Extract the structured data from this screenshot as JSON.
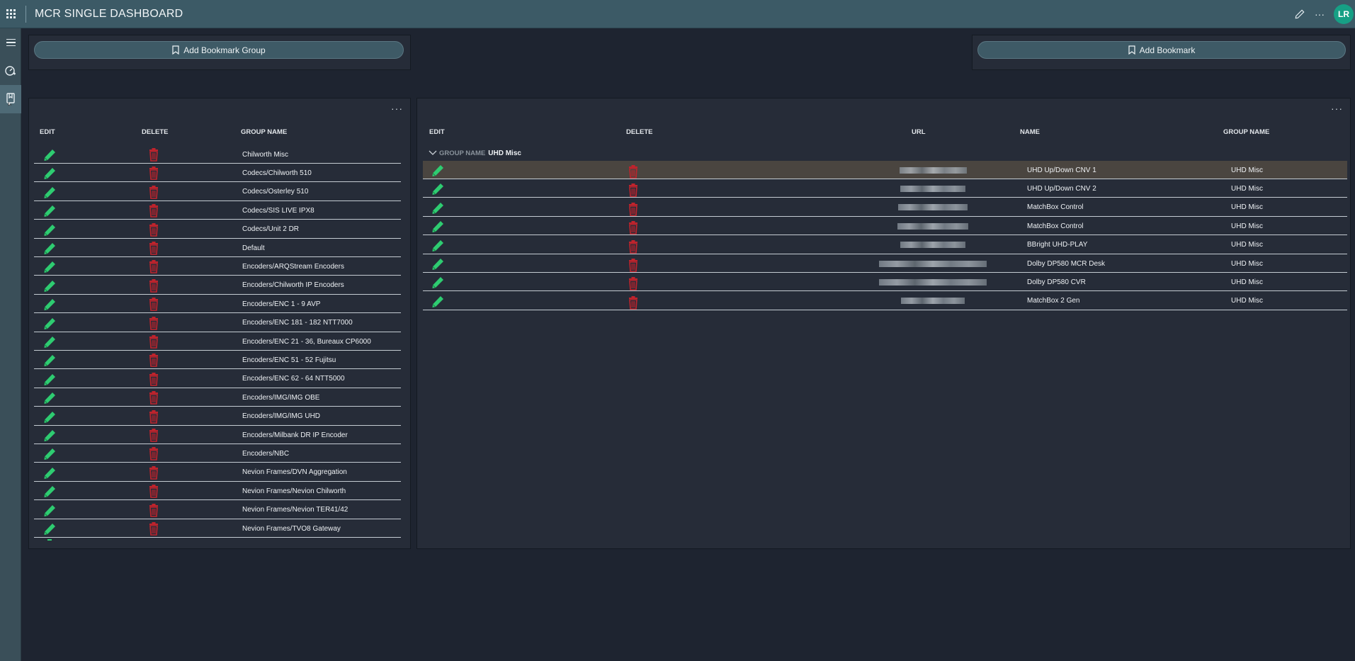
{
  "header": {
    "title": "MCR SINGLE DASHBOARD",
    "avatar_initials": "LR"
  },
  "buttons": {
    "add_group": "Add Bookmark Group",
    "add_bookmark": "Add Bookmark"
  },
  "groups_table": {
    "columns": [
      "EDIT",
      "DELETE",
      "GROUP NAME"
    ],
    "rows": [
      "Chilworth Misc",
      "Codecs/Chilworth 510",
      "Codecs/Osterley 510",
      "Codecs/SIS LIVE IPX8",
      "Codecs/Unit 2 DR",
      "Default",
      "Encoders/ARQStream Encoders",
      "Encoders/Chilworth IP Encoders",
      "Encoders/ENC 1 - 9 AVP",
      "Encoders/ENC 181 - 182 NTT7000",
      "Encoders/ENC 21 - 36, Bureaux CP6000",
      "Encoders/ENC 51 - 52 Fujitsu",
      "Encoders/ENC 62 - 64 NTT5000",
      "Encoders/IMG/IMG OBE",
      "Encoders/IMG/IMG UHD",
      "Encoders/Milbank DR IP Encoder",
      "Encoders/NBC",
      "Nevion Frames/DVN Aggregation",
      "Nevion Frames/Nevion Chilworth",
      "Nevion Frames/Nevion TER41/42",
      "Nevion Frames/TVO8 Gateway"
    ]
  },
  "bookmarks_table": {
    "columns": [
      "EDIT",
      "DELETE",
      "URL",
      "NAME",
      "GROUP NAME"
    ],
    "group_label": "GROUP NAME",
    "group_value": "UHD Misc",
    "rows": [
      {
        "name": "UHD Up/Down CNV 1",
        "group": "UHD Misc"
      },
      {
        "name": "UHD Up/Down CNV 2",
        "group": "UHD Misc"
      },
      {
        "name": "MatchBox Control",
        "group": "UHD Misc"
      },
      {
        "name": "MatchBox Control",
        "group": "UHD Misc"
      },
      {
        "name": "BBright UHD-PLAY",
        "group": "UHD Misc"
      },
      {
        "name": "Dolby DP580 MCR Desk",
        "group": "UHD Misc"
      },
      {
        "name": "Dolby DP580 CVR",
        "group": "UHD Misc"
      },
      {
        "name": "MatchBox 2 Gen",
        "group": "UHD Misc"
      }
    ]
  },
  "colors": {
    "edit": "#2ecc71",
    "delete": "#c0232c",
    "topbar": "#3c5a66",
    "accent": "#16a085"
  },
  "icons": [
    "waffle-icon",
    "pencil-icon",
    "more-icon",
    "menu-icon",
    "dashboard-icon",
    "bookmark-icon",
    "trash-icon"
  ]
}
